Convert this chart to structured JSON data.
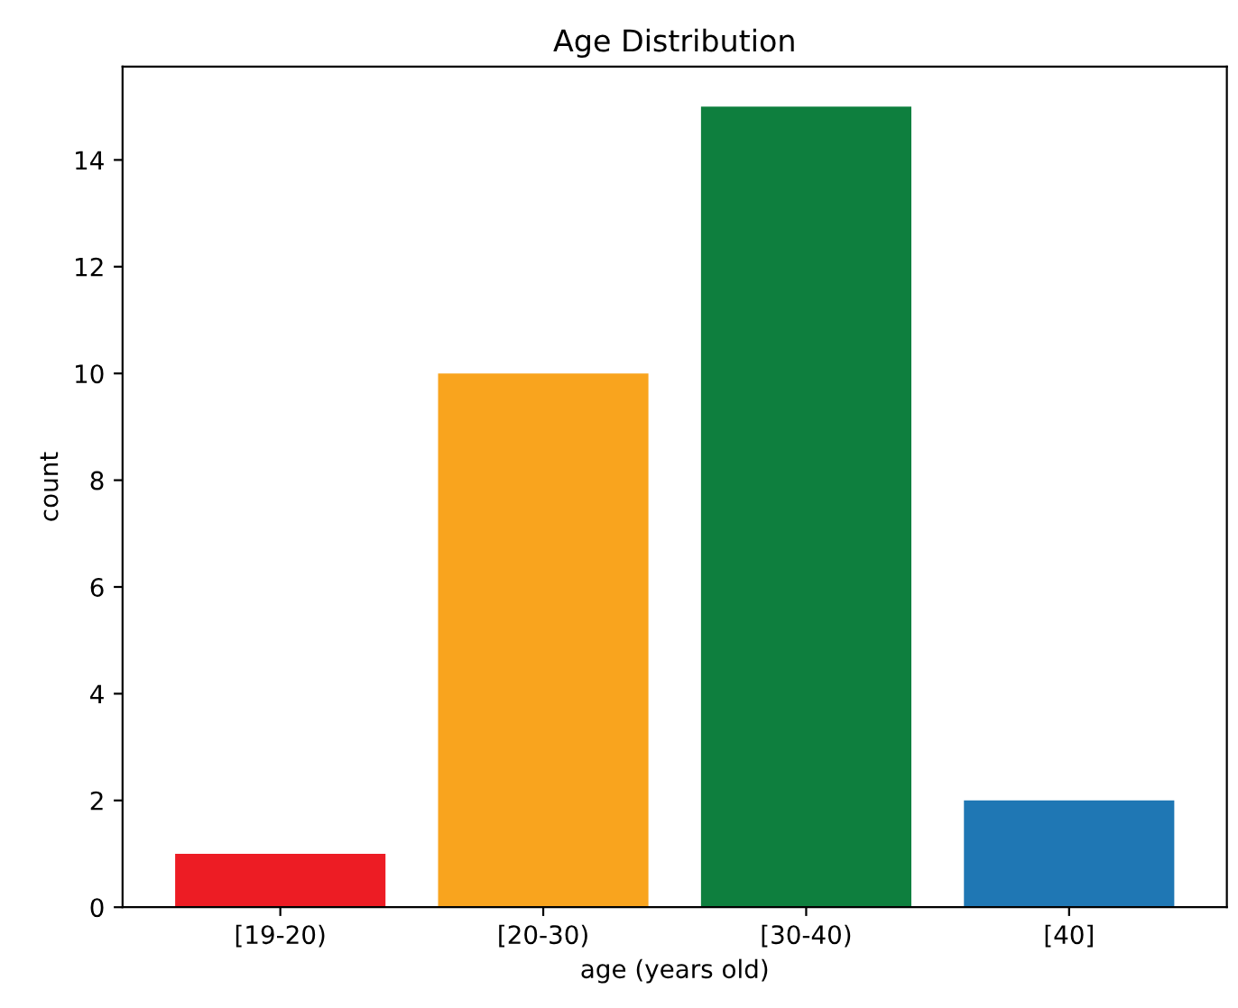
{
  "chart_data": {
    "type": "bar",
    "title": "Age Distribution",
    "xlabel": "age (years old)",
    "ylabel": "count",
    "categories": [
      "[19-20)",
      "[20-30)",
      "[30-40)",
      "[40]"
    ],
    "values": [
      1,
      10,
      15,
      2
    ],
    "colors": [
      "#ed1c24",
      "#f9a41e",
      "#0e7f3e",
      "#1f77b4"
    ],
    "ylim": [
      0,
      15.75
    ],
    "yticks": [
      0,
      2,
      4,
      6,
      8,
      10,
      12,
      14
    ],
    "grid": false,
    "legend": false
  }
}
